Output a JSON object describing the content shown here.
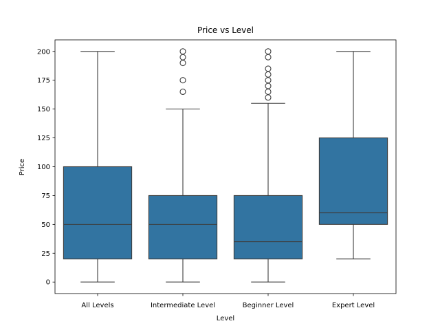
{
  "chart_data": {
    "type": "box",
    "title": "Price vs Level",
    "xlabel": "Level",
    "ylabel": "Price",
    "ylim": [
      -10,
      210
    ],
    "yticks": [
      0,
      25,
      50,
      75,
      100,
      125,
      150,
      175,
      200
    ],
    "grid": false,
    "box_color": "#3274a1",
    "line_color": "#3d3d3d",
    "categories": [
      "All Levels",
      "Intermediate Level",
      "Beginner Level",
      "Expert Level"
    ],
    "boxes": [
      {
        "category": "All Levels",
        "whisker_low": 0,
        "q1": 20,
        "median": 50,
        "q3": 100,
        "whisker_high": 200,
        "outliers": []
      },
      {
        "category": "Intermediate Level",
        "whisker_low": 0,
        "q1": 20,
        "median": 50,
        "q3": 75,
        "whisker_high": 150,
        "outliers": [
          165,
          175,
          190,
          195,
          200
        ]
      },
      {
        "category": "Beginner Level",
        "whisker_low": 0,
        "q1": 20,
        "median": 35,
        "q3": 75,
        "whisker_high": 155,
        "outliers": [
          160,
          165,
          170,
          175,
          180,
          185,
          195,
          200
        ]
      },
      {
        "category": "Expert Level",
        "whisker_low": 20,
        "q1": 50,
        "median": 60,
        "q3": 125,
        "whisker_high": 200,
        "outliers": []
      }
    ]
  }
}
